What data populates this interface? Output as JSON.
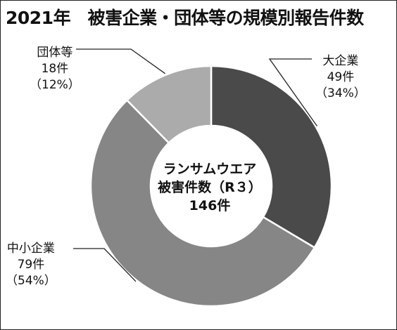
{
  "title": "2021年　被害企業・団体等の規模別報告件数",
  "chart_data": {
    "type": "pie",
    "title": "2021年　被害企業・団体等の規模別報告件数",
    "center_text": [
      "ランサムウエア",
      "被害件数（R３）",
      "146件"
    ],
    "total": 146,
    "slices": [
      {
        "name": "大企業",
        "count_label": "49件",
        "pct_label": "（34%）",
        "value": 49,
        "percent": 34,
        "color": "#4a4a4a"
      },
      {
        "name": "中小企業",
        "count_label": "79件",
        "pct_label": "（54%）",
        "value": 79,
        "percent": 54,
        "color": "#868686"
      },
      {
        "name": "団体等",
        "count_label": "18件",
        "pct_label": "（12%）",
        "value": 18,
        "percent": 12,
        "color": "#ababab"
      }
    ]
  }
}
